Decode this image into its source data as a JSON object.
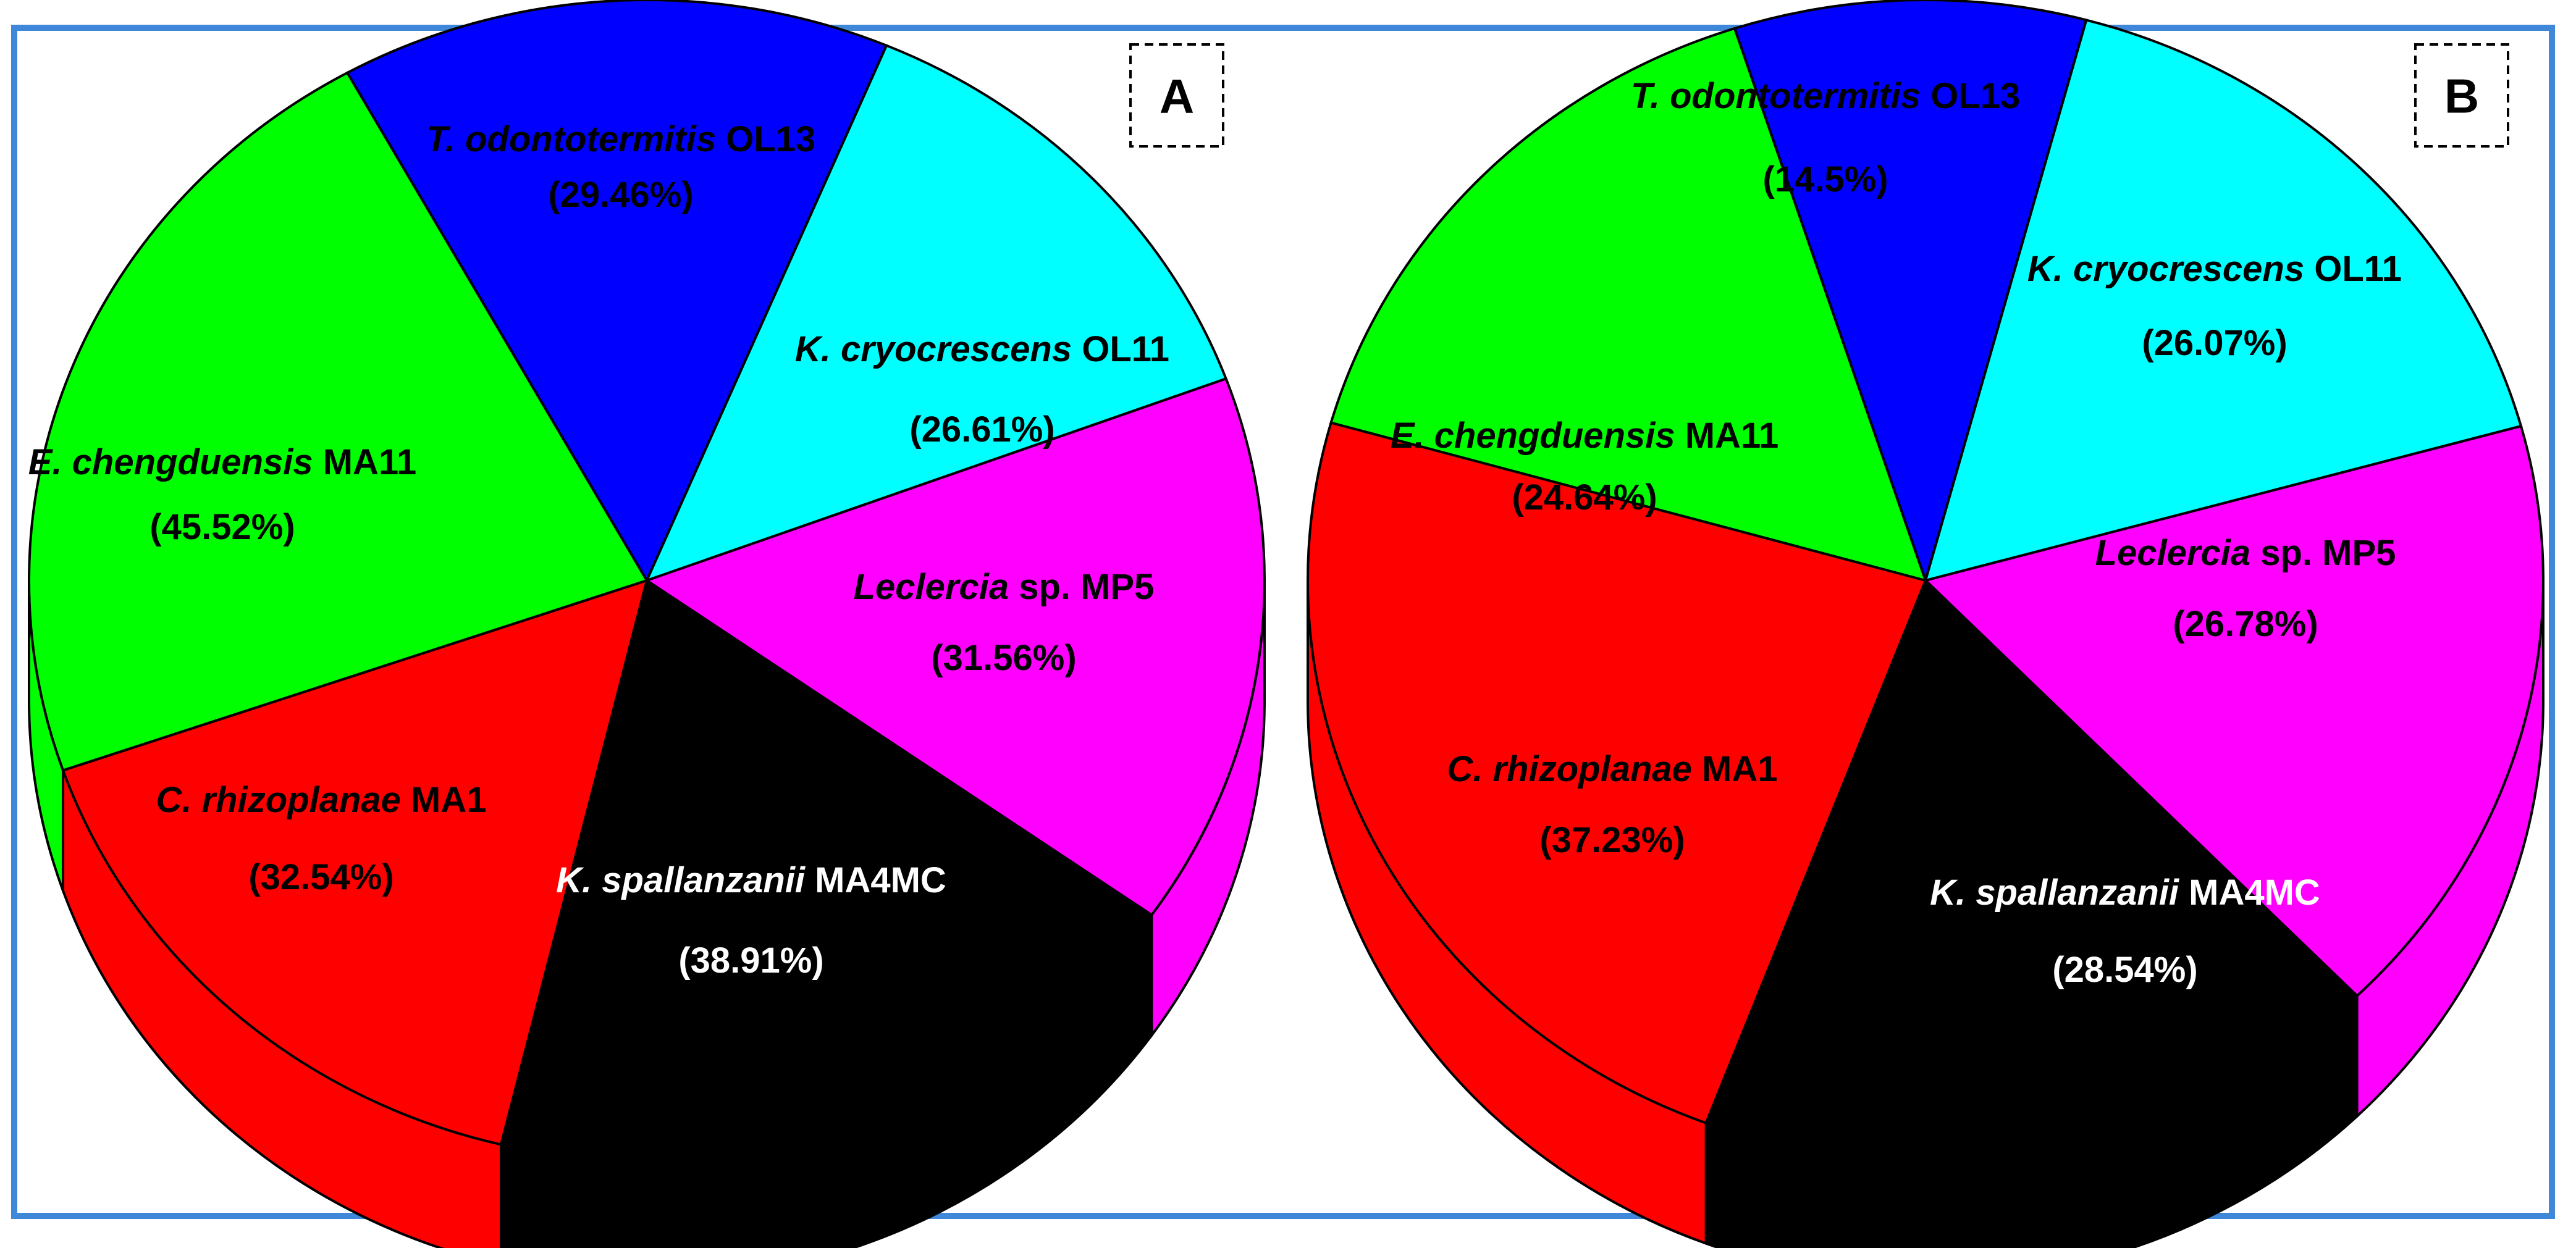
{
  "figure": {
    "border_color": "#3f88d9"
  },
  "chart_data": [
    {
      "type": "pie",
      "panel": "A",
      "slices": [
        {
          "species": "T. odontotermitis",
          "strain": "OL13",
          "pct_text": "(29.46%)",
          "value": 29.46,
          "color": "#0000ff"
        },
        {
          "species": "K. cryocrescens",
          "strain": "OL11",
          "pct_text": "(26.61%)",
          "value": 26.61,
          "color": "#00ffff"
        },
        {
          "species": "Leclercia",
          "strain": "sp. MP5",
          "pct_text": "(31.56%)",
          "value": 31.56,
          "color": "#ff00ff"
        },
        {
          "species": "K. spallanzanii",
          "strain": "MA4MC",
          "pct_text": "(38.91%)",
          "value": 38.91,
          "color": "#000000"
        },
        {
          "species": "C. rhizoplanae",
          "strain": "MA1",
          "pct_text": "(32.54%)",
          "value": 32.54,
          "color": "#ff0000"
        },
        {
          "species": "E. chengduensis",
          "strain": "MA11",
          "pct_text": "(45.52%)",
          "value": 45.52,
          "color": "#00ff00"
        }
      ]
    },
    {
      "type": "pie",
      "panel": "B",
      "slices": [
        {
          "species": "T. odontotermitis",
          "strain": "OL13",
          "pct_text": "(14.5%)",
          "value": 14.5,
          "color": "#0000ff"
        },
        {
          "species": "K. cryocrescens",
          "strain": "OL11",
          "pct_text": "(26.07%)",
          "value": 26.07,
          "color": "#00ffff"
        },
        {
          "species": "Leclercia",
          "strain": "sp. MP5",
          "pct_text": "(26.78%)",
          "value": 26.78,
          "color": "#ff00ff"
        },
        {
          "species": "K. spallanzanii",
          "strain": "MA4MC",
          "pct_text": "(28.54%)",
          "value": 28.54,
          "color": "#000000"
        },
        {
          "species": "C. rhizoplanae",
          "strain": "MA1",
          "pct_text": "(37.23%)",
          "value": 37.23,
          "color": "#ff0000"
        },
        {
          "species": "E. chengduensis",
          "strain": "MA11",
          "pct_text": "(24.64%)",
          "value": 24.64,
          "color": "#00ff00"
        }
      ]
    }
  ]
}
